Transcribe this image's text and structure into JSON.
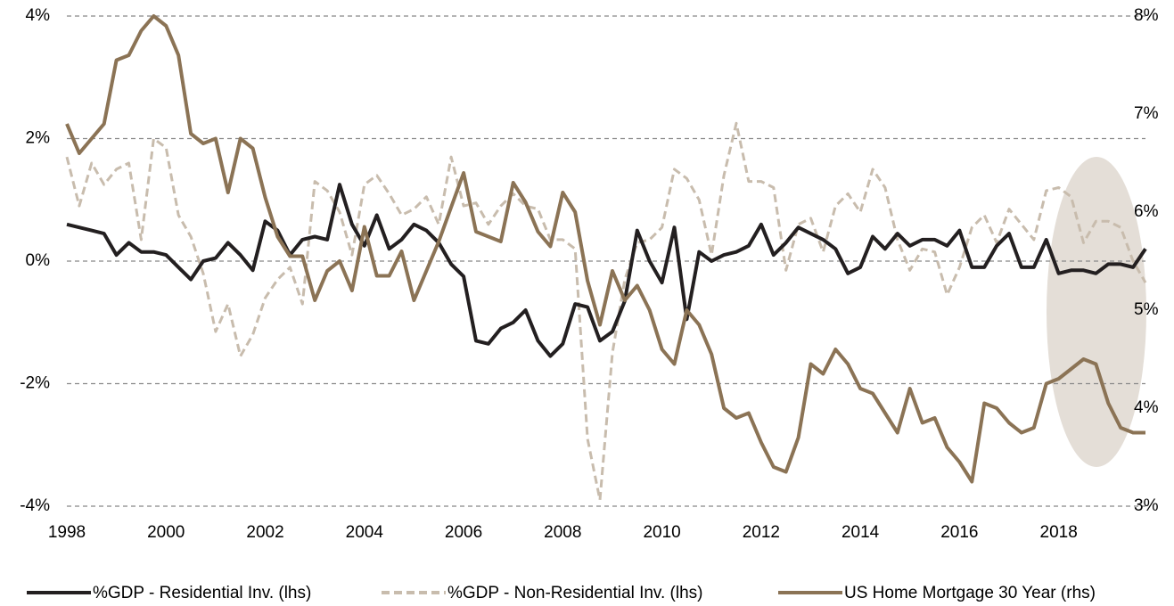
{
  "chart_data": {
    "type": "line",
    "x": [
      1998,
      1998.25,
      1998.5,
      1998.75,
      1999,
      1999.25,
      1999.5,
      1999.75,
      2000,
      2000.25,
      2000.5,
      2000.75,
      2001,
      2001.25,
      2001.5,
      2001.75,
      2002,
      2002.25,
      2002.5,
      2002.75,
      2003,
      2003.25,
      2003.5,
      2003.75,
      2004,
      2004.25,
      2004.5,
      2004.75,
      2005,
      2005.25,
      2005.5,
      2005.75,
      2006,
      2006.25,
      2006.5,
      2006.75,
      2007,
      2007.25,
      2007.5,
      2007.75,
      2008,
      2008.25,
      2008.5,
      2008.75,
      2009,
      2009.25,
      2009.5,
      2009.75,
      2010,
      2010.25,
      2010.5,
      2010.75,
      2011,
      2011.25,
      2011.5,
      2011.75,
      2012,
      2012.25,
      2012.5,
      2012.75,
      2013,
      2013.25,
      2013.5,
      2013.75,
      2014,
      2014.25,
      2014.5,
      2014.75,
      2015,
      2015.25,
      2015.5,
      2015.75,
      2016,
      2016.25,
      2016.5,
      2016.75,
      2017,
      2017.25,
      2017.5,
      2017.75,
      2018,
      2018.25,
      2018.5,
      2018.75,
      2019,
      2019.25,
      2019.5,
      2019.75
    ],
    "series": [
      {
        "name": "%GDP - Residential Inv. (lhs)",
        "color": "#231f20",
        "dash": false,
        "values": [
          0.6,
          0.55,
          0.5,
          0.45,
          0.1,
          0.3,
          0.15,
          0.15,
          0.1,
          -0.1,
          -0.3,
          0.0,
          0.05,
          0.3,
          0.1,
          -0.15,
          0.65,
          0.5,
          0.1,
          0.35,
          0.4,
          0.35,
          1.25,
          0.6,
          0.25,
          0.75,
          0.2,
          0.35,
          0.6,
          0.5,
          0.3,
          -0.05,
          -0.25,
          -1.3,
          -1.35,
          -1.1,
          -1.0,
          -0.8,
          -1.3,
          -1.55,
          -1.35,
          -0.7,
          -0.75,
          -1.3,
          -1.15,
          -0.65,
          0.5,
          0.0,
          -0.35,
          0.55,
          -0.95,
          0.15,
          0.0,
          0.1,
          0.15,
          0.25,
          0.6,
          0.1,
          0.3,
          0.55,
          0.45,
          0.35,
          0.2,
          -0.2,
          -0.1,
          0.4,
          0.2,
          0.45,
          0.25,
          0.35,
          0.35,
          0.25,
          0.5,
          -0.1,
          -0.1,
          0.25,
          0.45,
          -0.1,
          -0.1,
          0.35,
          -0.2,
          -0.15,
          -0.15,
          -0.2,
          -0.05,
          -0.05,
          -0.1,
          0.2
        ]
      },
      {
        "name": "%GDP - Non-Residential Inv. (lhs)",
        "color": "#c8bcad",
        "dash": true,
        "values": [
          1.7,
          0.9,
          1.6,
          1.25,
          1.5,
          1.6,
          0.35,
          2.0,
          1.85,
          0.75,
          0.4,
          -0.2,
          -1.15,
          -0.7,
          -1.55,
          -1.2,
          -0.6,
          -0.3,
          -0.1,
          -0.7,
          1.3,
          1.15,
          0.8,
          0.1,
          1.25,
          1.4,
          1.1,
          0.75,
          0.85,
          1.05,
          0.6,
          1.7,
          0.9,
          0.95,
          0.6,
          0.9,
          1.1,
          0.9,
          0.85,
          0.35,
          0.35,
          0.2,
          -2.9,
          -3.9,
          -1.5,
          -0.3,
          0.3,
          0.35,
          0.55,
          1.5,
          1.35,
          1.0,
          0.1,
          1.4,
          2.25,
          1.3,
          1.3,
          1.2,
          -0.15,
          0.6,
          0.7,
          0.15,
          0.9,
          1.1,
          0.8,
          1.5,
          1.2,
          0.35,
          -0.15,
          0.2,
          0.15,
          -0.55,
          -0.1,
          0.55,
          0.75,
          0.3,
          0.85,
          0.6,
          0.35,
          1.15,
          1.2,
          1.05,
          0.3,
          0.65,
          0.65,
          0.55,
          0.0,
          -0.35
        ]
      },
      {
        "name": "US Home Mortgage 30 Year (rhs)",
        "color": "#8b7355",
        "dash": false,
        "axis": "y2",
        "values": [
          6.9,
          6.6,
          6.75,
          6.9,
          7.55,
          7.6,
          7.85,
          8.0,
          7.9,
          7.6,
          6.8,
          6.7,
          6.75,
          6.2,
          6.75,
          6.65,
          6.15,
          5.75,
          5.55,
          5.55,
          5.1,
          5.4,
          5.5,
          5.2,
          5.85,
          5.35,
          5.35,
          5.6,
          5.1,
          5.4,
          5.7,
          6.05,
          6.4,
          5.8,
          5.75,
          5.7,
          6.3,
          6.1,
          5.8,
          5.65,
          6.2,
          6.0,
          5.3,
          4.85,
          5.4,
          5.1,
          5.25,
          5.0,
          4.6,
          4.45,
          5.0,
          4.85,
          4.55,
          4.0,
          3.9,
          3.95,
          3.65,
          3.4,
          3.35,
          3.7,
          4.45,
          4.35,
          4.6,
          4.45,
          4.2,
          4.15,
          3.95,
          3.75,
          4.2,
          3.85,
          3.9,
          3.6,
          3.45,
          3.25,
          4.05,
          4.0,
          3.85,
          3.75,
          3.8,
          4.25,
          4.3,
          4.4,
          4.5,
          4.45,
          4.05,
          3.8,
          3.75,
          3.75
        ]
      }
    ],
    "xlim": [
      1998,
      2019.75
    ],
    "xticks": [
      1998,
      2000,
      2002,
      2004,
      2006,
      2008,
      2010,
      2012,
      2014,
      2016,
      2018
    ],
    "ylim": [
      -4,
      4
    ],
    "yticks": [
      {
        "value": -4,
        "label": "-4%"
      },
      {
        "value": -2,
        "label": "-2%"
      },
      {
        "value": 0,
        "label": "0%"
      },
      {
        "value": 2,
        "label": "2%"
      },
      {
        "value": 4,
        "label": "4%"
      }
    ],
    "y2lim": [
      3,
      8
    ],
    "y2ticks": [
      {
        "value": 3,
        "label": "3%"
      },
      {
        "value": 4,
        "label": "4%"
      },
      {
        "value": 5,
        "label": "5%"
      },
      {
        "value": 6,
        "label": "6%"
      },
      {
        "value": 7,
        "label": "7%"
      },
      {
        "value": 8,
        "label": "8%"
      }
    ],
    "grid": true,
    "legend": "bottom"
  }
}
